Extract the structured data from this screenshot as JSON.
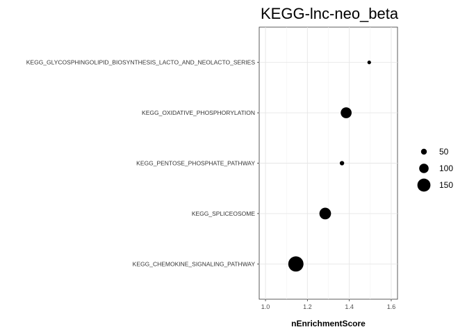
{
  "chart_data": {
    "type": "scatter",
    "title": "KEGG-lnc-neo_beta",
    "xlabel": "nEnrichmentScore",
    "ylabel": "",
    "xlim": [
      0.97,
      1.63
    ],
    "x_ticks": [
      1.0,
      1.2,
      1.4,
      1.6
    ],
    "x_tick_labels": [
      "1.0",
      "1.2",
      "1.4",
      "1.6"
    ],
    "categories": [
      "KEGG_GLYCOSPHINGOLIPID_BIOSYNTHESIS_LACTO_AND_NEOLACTO_SERIES",
      "KEGG_OXIDATIVE_PHOSPHORYLATION",
      "KEGG_PENTOSE_PHOSPHATE_PATHWAY",
      "KEGG_SPLICEOSOME",
      "KEGG_CHEMOKINE_SIGNALING_PATHWAY"
    ],
    "x": [
      1.495,
      1.385,
      1.365,
      1.285,
      1.145
    ],
    "size": [
      20,
      120,
      30,
      130,
      180
    ],
    "size_legend": {
      "values": [
        50,
        100,
        150
      ],
      "labels": [
        "50",
        "100",
        "150"
      ],
      "placement": "right"
    },
    "grid": true,
    "point_color": "#000000"
  }
}
